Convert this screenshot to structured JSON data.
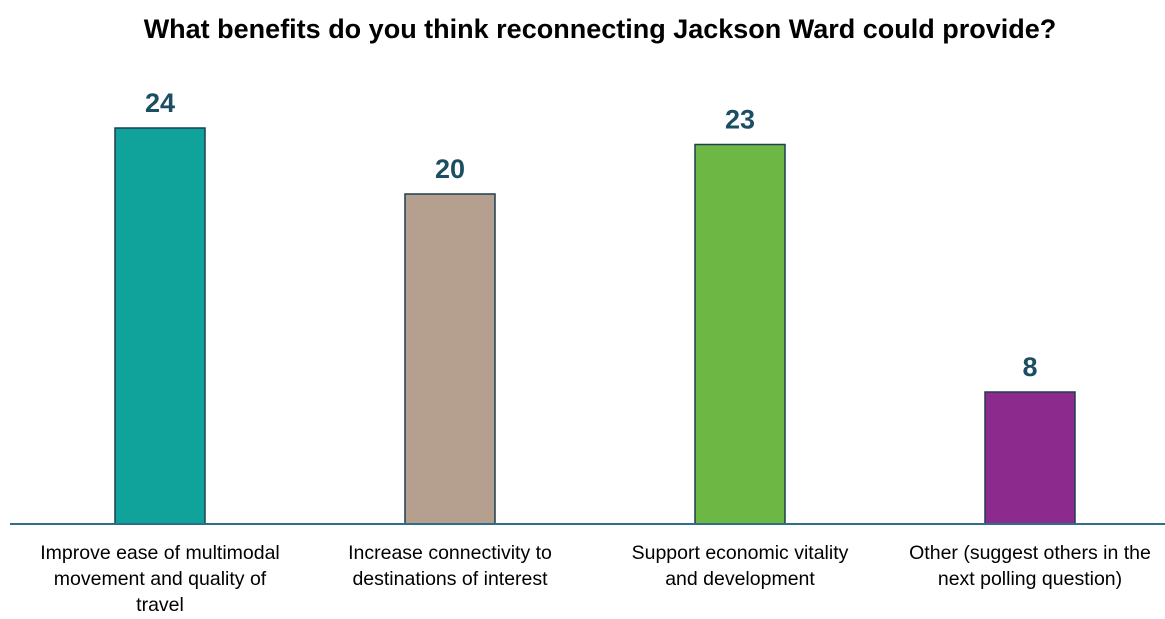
{
  "chart_data": {
    "type": "bar",
    "title": "What benefits do you think reconnecting Jackson Ward could provide?",
    "categories": [
      "Improve ease of multimodal movement and quality of travel",
      "Increase connectivity to destinations of interest",
      "Support economic vitality and development",
      "Other (suggest others in the next polling question)"
    ],
    "values": [
      24,
      20,
      23,
      8
    ],
    "colors": [
      "#0fa39b",
      "#b5a090",
      "#6db844",
      "#8d2a8d"
    ],
    "value_label_color": "#1b4e63",
    "axis_color": "#2e6e86",
    "ylim": [
      0,
      26
    ],
    "grid": false,
    "legend": "none"
  }
}
